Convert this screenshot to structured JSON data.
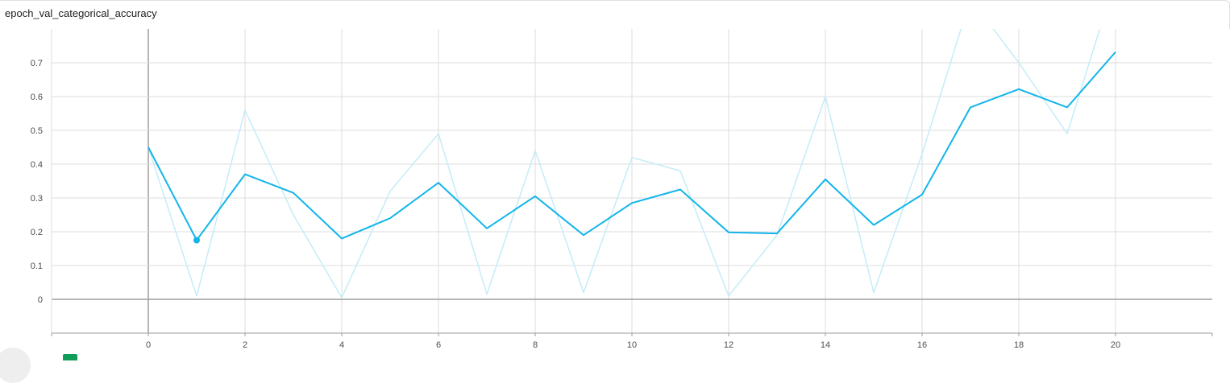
{
  "card": {
    "title": "epoch_val_categorical_accuracy"
  },
  "colors": {
    "smoothed": "#12b5ea",
    "raw": "#c5ecf8",
    "grid": "#dddddd",
    "axis": "#9e9e9e",
    "zero_line": "#9e9e9e"
  },
  "chart_data": {
    "type": "line",
    "title": "epoch_val_categorical_accuracy",
    "xlabel": "",
    "ylabel": "",
    "xlim": [
      -2,
      22
    ],
    "ylim": [
      -0.1,
      0.8
    ],
    "x_ticks": [
      0,
      2,
      4,
      6,
      8,
      10,
      12,
      14,
      16,
      18,
      20
    ],
    "y_ticks": [
      0,
      0.1,
      0.2,
      0.3,
      0.4,
      0.5,
      0.6,
      0.7
    ],
    "y_tick_labels": [
      "0",
      "0.1",
      "0.2",
      "0.3",
      "0.4",
      "0.5",
      "0.6",
      "0.7"
    ],
    "grid": true,
    "x": [
      0,
      1,
      2,
      3,
      4,
      5,
      6,
      7,
      8,
      9,
      10,
      11,
      12,
      13,
      14,
      15,
      16,
      17,
      18,
      19,
      20
    ],
    "series": [
      {
        "role": "raw",
        "values": [
          0.45,
          0.01,
          0.56,
          0.25,
          0.005,
          0.32,
          0.49,
          0.015,
          0.44,
          0.02,
          0.42,
          0.38,
          0.01,
          0.19,
          0.6,
          0.02,
          0.43,
          0.89,
          0.7,
          0.49,
          0.95
        ]
      },
      {
        "role": "smoothed",
        "values": [
          0.45,
          0.175,
          0.37,
          0.315,
          0.18,
          0.24,
          0.345,
          0.21,
          0.305,
          0.19,
          0.285,
          0.325,
          0.198,
          0.195,
          0.355,
          0.22,
          0.31,
          0.568,
          0.622,
          0.568,
          0.732
        ]
      }
    ],
    "highlight_point": {
      "x": 1,
      "y": 0.175
    }
  }
}
